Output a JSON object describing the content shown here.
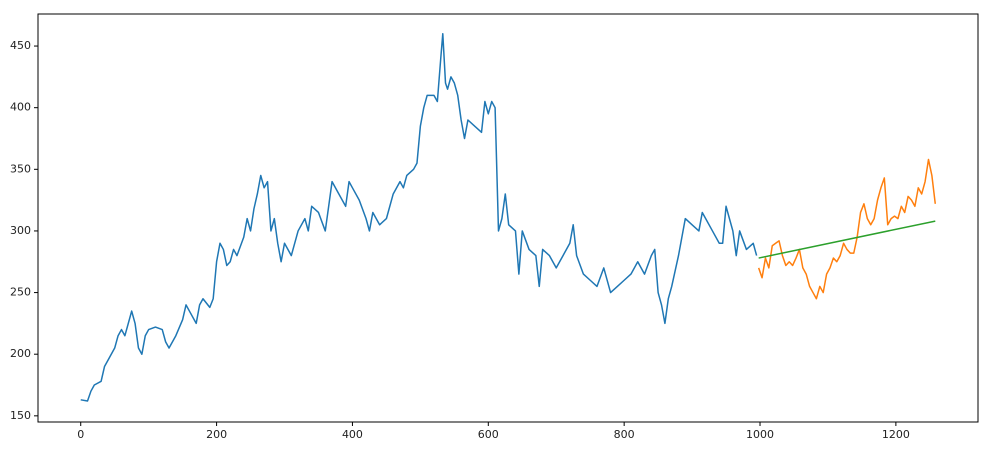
{
  "chart_data": {
    "type": "line",
    "xlim": [
      -62.9,
      1320.9
    ],
    "ylim": [
      145,
      476
    ],
    "xticks": [
      0,
      200,
      400,
      600,
      800,
      1000,
      1200
    ],
    "yticks": [
      150,
      200,
      250,
      300,
      350,
      400,
      450
    ],
    "grid": false,
    "series": [
      {
        "color": "#1f77b4",
        "x": [
          0,
          10,
          15,
          20,
          30,
          35,
          40,
          50,
          55,
          60,
          65,
          70,
          75,
          80,
          85,
          90,
          95,
          100,
          110,
          120,
          125,
          130,
          140,
          150,
          155,
          160,
          170,
          175,
          180,
          190,
          195,
          200,
          205,
          210,
          215,
          220,
          225,
          230,
          240,
          245,
          250,
          255,
          260,
          265,
          270,
          275,
          280,
          285,
          290,
          295,
          300,
          310,
          320,
          330,
          335,
          340,
          350,
          360,
          365,
          370,
          380,
          390,
          395,
          400,
          410,
          420,
          425,
          430,
          440,
          450,
          460,
          470,
          475,
          480,
          490,
          495,
          500,
          505,
          510,
          520,
          525,
          530,
          533,
          537,
          540,
          545,
          550,
          555,
          560,
          565,
          570,
          580,
          590,
          595,
          600,
          605,
          610,
          615,
          620,
          625,
          630,
          640,
          645,
          650,
          660,
          670,
          675,
          680,
          690,
          700,
          710,
          720,
          725,
          730,
          740,
          750,
          760,
          770,
          780,
          790,
          800,
          810,
          820,
          830,
          840,
          845,
          850,
          855,
          860,
          865,
          870,
          880,
          890,
          900,
          910,
          915,
          920,
          930,
          940,
          945,
          950,
          955,
          960,
          965,
          970,
          980,
          990,
          995
        ],
        "values": [
          163,
          162,
          170,
          175,
          178,
          190,
          195,
          205,
          215,
          220,
          215,
          225,
          235,
          225,
          205,
          200,
          215,
          220,
          222,
          220,
          210,
          205,
          215,
          228,
          240,
          235,
          225,
          240,
          245,
          238,
          245,
          275,
          290,
          285,
          272,
          275,
          285,
          280,
          295,
          310,
          300,
          318,
          330,
          345,
          335,
          340,
          300,
          310,
          290,
          275,
          290,
          280,
          300,
          310,
          300,
          320,
          315,
          300,
          320,
          340,
          330,
          320,
          340,
          335,
          325,
          310,
          300,
          315,
          305,
          310,
          330,
          340,
          335,
          345,
          350,
          355,
          385,
          400,
          410,
          410,
          405,
          440,
          460,
          420,
          415,
          425,
          420,
          410,
          390,
          375,
          390,
          385,
          380,
          405,
          395,
          405,
          400,
          300,
          310,
          330,
          305,
          300,
          265,
          300,
          285,
          280,
          255,
          285,
          280,
          270,
          280,
          290,
          305,
          280,
          265,
          260,
          255,
          270,
          250,
          255,
          260,
          265,
          275,
          265,
          280,
          285,
          250,
          240,
          225,
          245,
          255,
          280,
          310,
          305,
          300,
          315,
          310,
          300,
          290,
          290,
          320,
          310,
          300,
          280,
          300,
          285,
          290,
          280
        ]
      },
      {
        "color": "#ff7f0e",
        "x": [
          998,
          1003,
          1008,
          1013,
          1018,
          1023,
          1028,
          1033,
          1038,
          1043,
          1048,
          1053,
          1058,
          1063,
          1068,
          1073,
          1078,
          1083,
          1088,
          1093,
          1098,
          1103,
          1108,
          1113,
          1118,
          1123,
          1128,
          1133,
          1138,
          1143,
          1148,
          1153,
          1158,
          1163,
          1168,
          1173,
          1178,
          1183,
          1188,
          1193,
          1198,
          1203,
          1208,
          1213,
          1218,
          1223,
          1228,
          1233,
          1238,
          1243,
          1248,
          1253,
          1258
        ],
        "values": [
          270,
          262,
          278,
          270,
          288,
          290,
          292,
          280,
          272,
          275,
          272,
          278,
          285,
          270,
          265,
          255,
          250,
          245,
          255,
          250,
          265,
          270,
          278,
          275,
          280,
          290,
          285,
          282,
          282,
          295,
          315,
          322,
          310,
          305,
          310,
          325,
          335,
          343,
          305,
          310,
          312,
          310,
          320,
          315,
          328,
          325,
          320,
          335,
          330,
          340,
          358,
          345,
          322
        ]
      },
      {
        "color": "#2ca02c",
        "x": [
          998,
          1258
        ],
        "values": [
          278,
          308
        ]
      }
    ]
  }
}
